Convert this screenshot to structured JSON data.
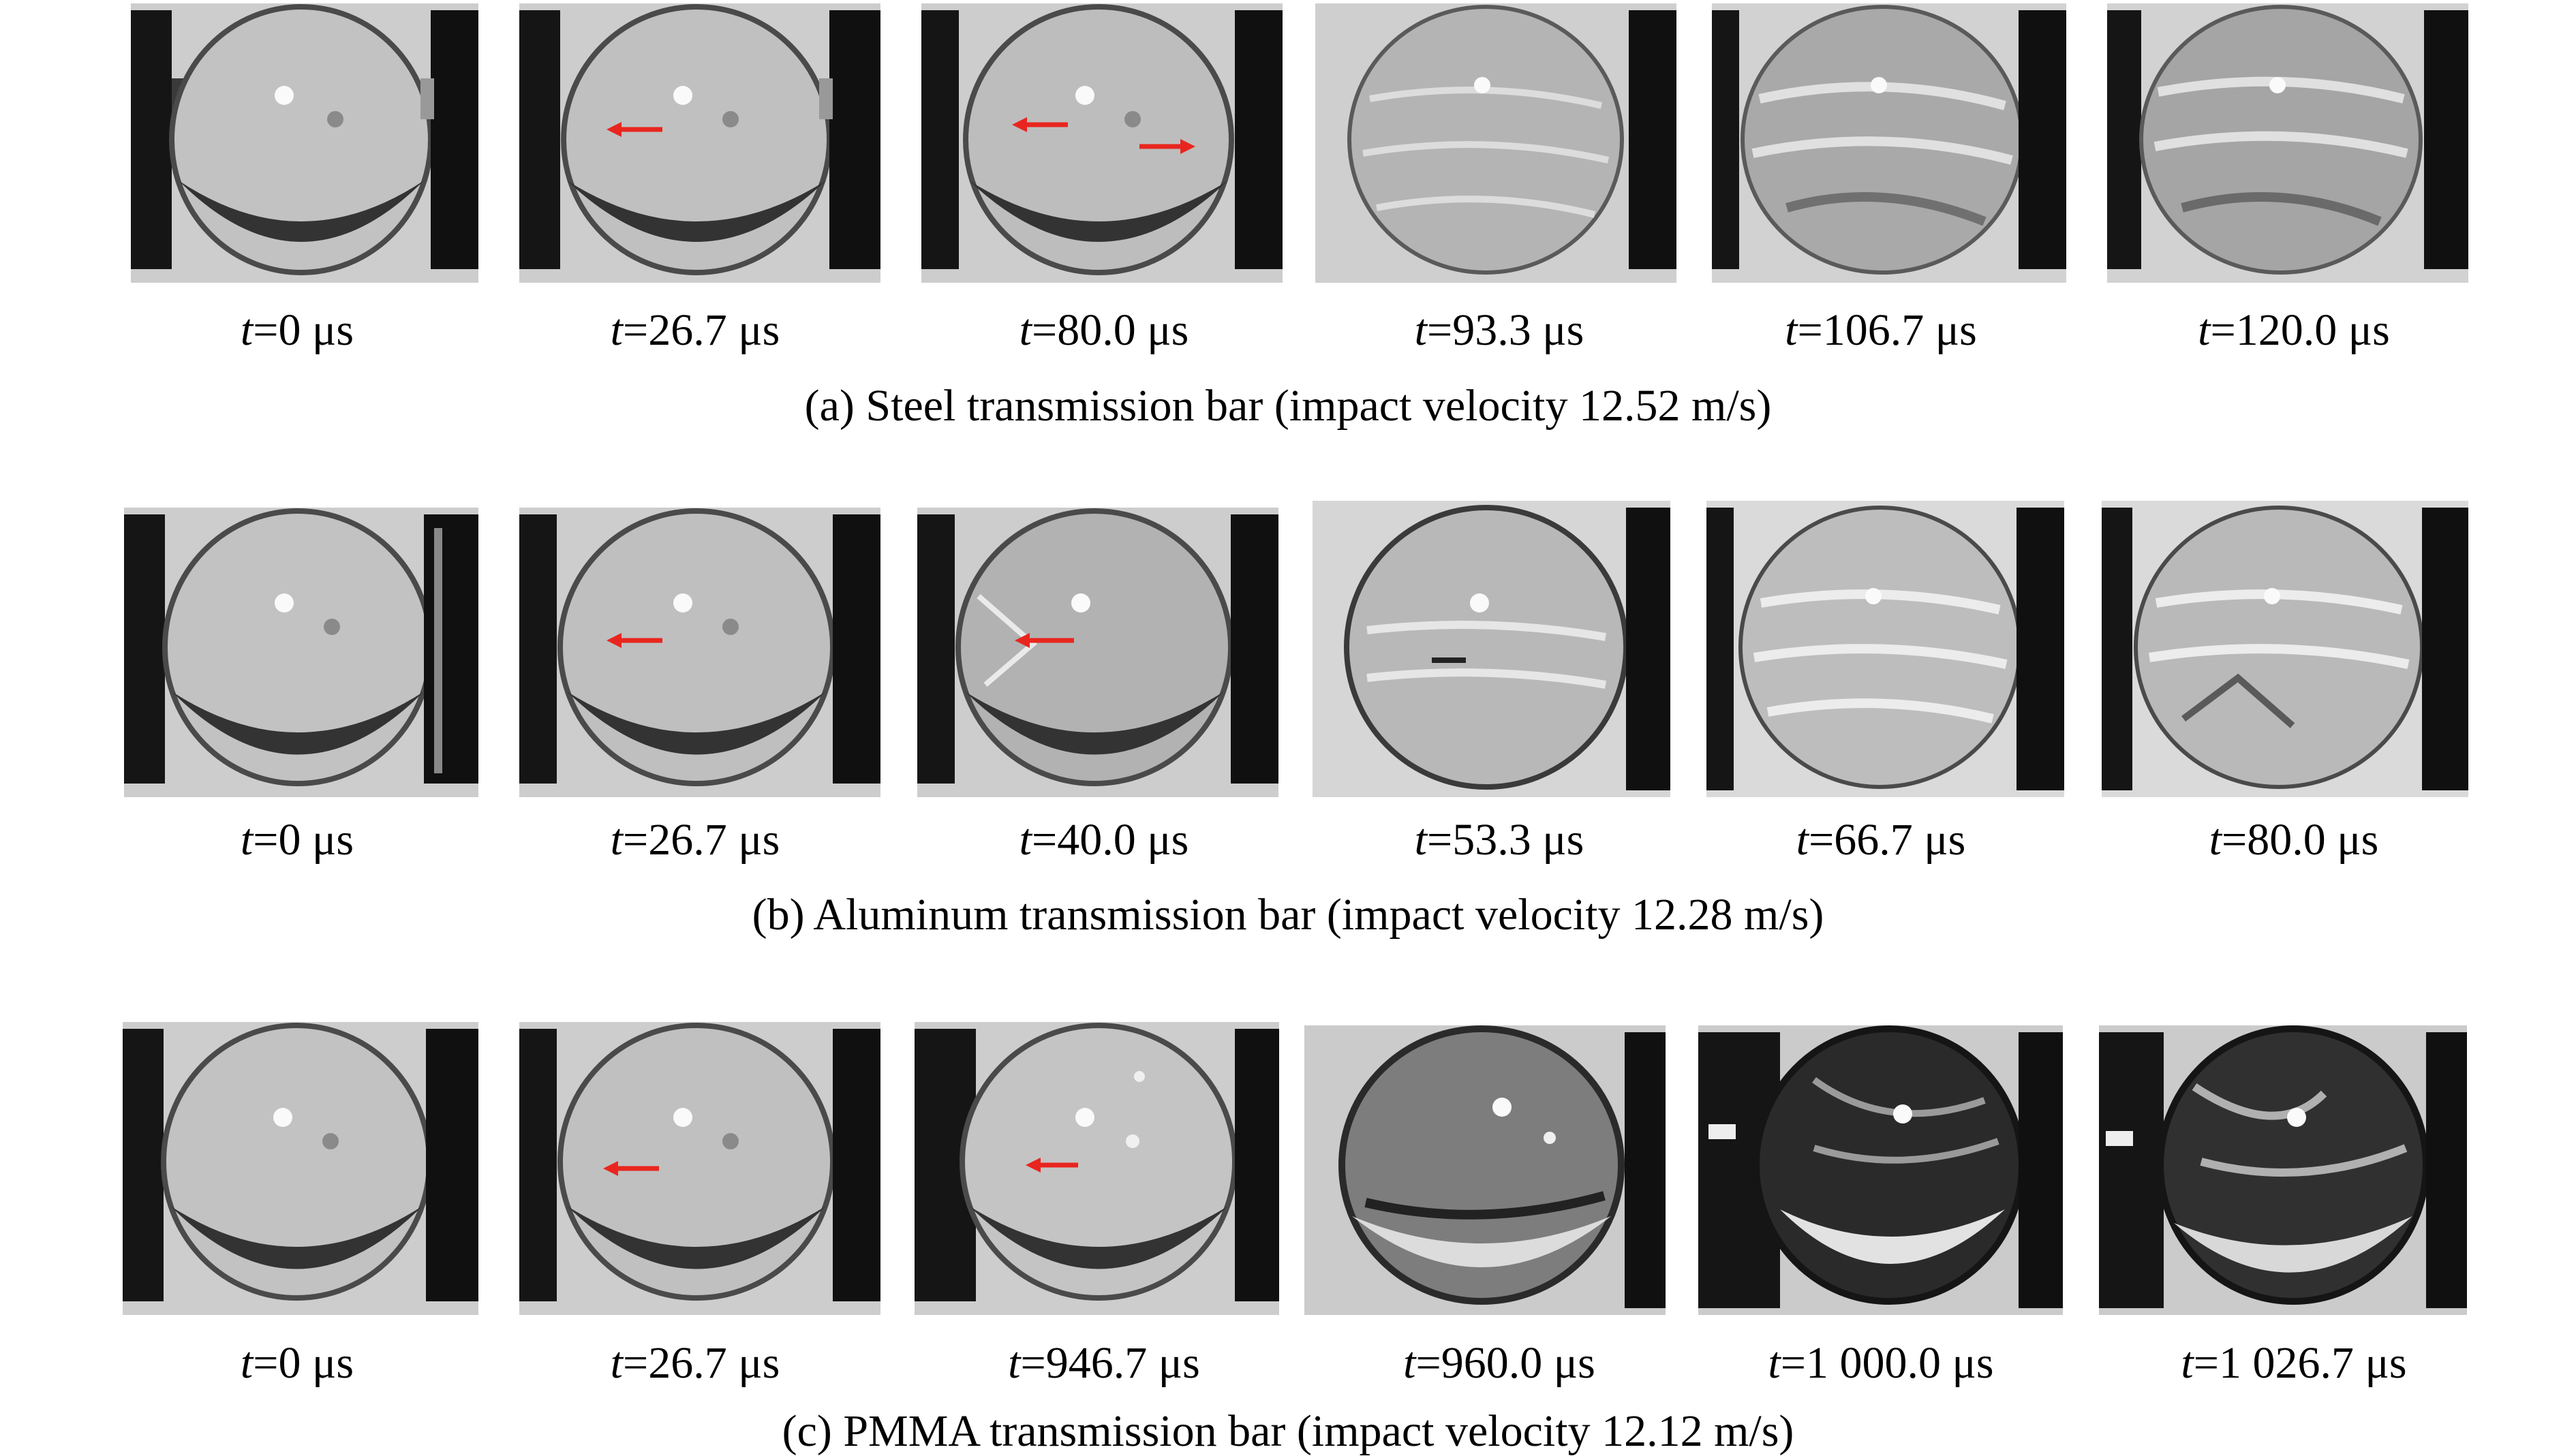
{
  "panels": [
    {
      "caption": "(a) Steel transmission bar (impact velocity 12.52 m/s)",
      "frames": [
        {
          "time": "=0 μs"
        },
        {
          "time": "=26.7 μs"
        },
        {
          "time": "=80.0 μs"
        },
        {
          "time": "=93.3 μs"
        },
        {
          "time": "=106.7 μs"
        },
        {
          "time": "=120.0 μs"
        }
      ]
    },
    {
      "caption": "(b) Aluminum transmission bar (impact velocity 12.28 m/s)",
      "frames": [
        {
          "time": "=0 μs"
        },
        {
          "time": "=26.7 μs"
        },
        {
          "time": "=40.0 μs"
        },
        {
          "time": "=53.3 μs"
        },
        {
          "time": "=66.7 μs"
        },
        {
          "time": "=80.0 μs"
        }
      ]
    },
    {
      "caption": "(c) PMMA transmission bar (impact velocity 12.12 m/s)",
      "frames": [
        {
          "time": "=0 μs"
        },
        {
          "time": "=26.7 μs"
        },
        {
          "time": "=946.7 μs"
        },
        {
          "time": "=960.0 μs"
        },
        {
          "time": "=1 000.0 μs"
        },
        {
          "time": "=1 026.7 μs"
        }
      ]
    }
  ],
  "time_symbol": "t",
  "arrow_color": "#e8261f"
}
